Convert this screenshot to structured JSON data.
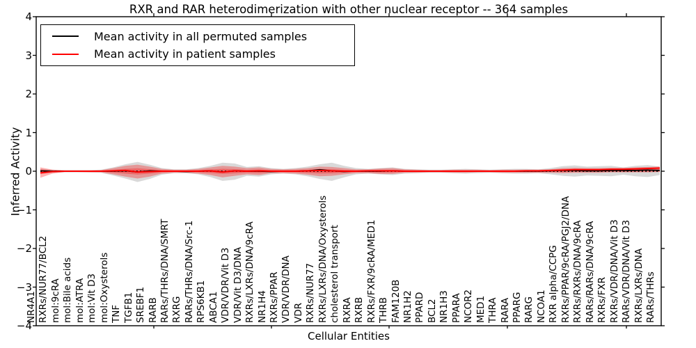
{
  "chart_data": {
    "type": "line",
    "title": "RXR and RAR heterodimerization with other nuclear receptor -- 364 samples",
    "xlabel": "Cellular Entities",
    "ylabel": "Inferred Activity",
    "ylim": [
      -4,
      4
    ],
    "ytick_labels": [
      "4",
      "3",
      "2",
      "1",
      "0",
      "−1",
      "−2",
      "−3",
      "−4"
    ],
    "grid": false,
    "legend_position": "upper left",
    "categories": [
      "NR4A1",
      "RXRs/NUR77/BCL2",
      "mol:9cRA",
      "mol:Bile acids",
      "mol:ATRA",
      "mol:Vit D3",
      "mol:Oxysterols",
      "TNF",
      "TGFB1",
      "SREBF1",
      "RARB",
      "RARs/THRs/DNA/SMRT",
      "RXRG",
      "RARs/THRs/DNA/Src-1",
      "RPS6KB1",
      "ABCA1",
      "VDR/VDR/Vit D3",
      "VDR/Vit D3/DNA",
      "RXRs/LXRs/DNA/9cRA",
      "NR1H4",
      "RXRs/PPAR",
      "VDR/VDR/DNA",
      "VDR",
      "RXRs/NUR77",
      "RXRs/LXRs/DNA/Oxysterols",
      "cholesterol transport",
      "RXRA",
      "RXRB",
      "RXRs/FXR/9cRA/MED1",
      "THRB",
      "FAM120B",
      "NR1H2",
      "PPARD",
      "BCL2",
      "NR1H3",
      "PPARA",
      "NCOR2",
      "MED1",
      "THRA",
      "RARA",
      "PPARG",
      "RARG",
      "NCOA1",
      "RXR alpha/CCPG",
      "RXRs/PPAR/9cRA/PGJ2/DNA",
      "RXRs/RXRs/DNA/9cRA",
      "RARs/RARs/DNA/9cRA",
      "RXRs/FXR",
      "RXRs/VDR/DNA/Vit D3",
      "RARs/VDR/DNA/Vit D3",
      "RXRs/LXRs/DNA",
      "RARs/THRs"
    ],
    "series": [
      {
        "name": "Mean activity in all permuted samples",
        "color": "#000000",
        "style": "solid",
        "values": [
          0.01,
          0,
          0,
          0,
          0,
          0,
          0,
          0.01,
          -0.02,
          0.01,
          0,
          0,
          -0.01,
          0,
          0.01,
          -0.02,
          0.01,
          0,
          0,
          -0.01,
          0,
          0,
          0.01,
          0.04,
          0.01,
          -0.01,
          0,
          0,
          0,
          0.01,
          0,
          0,
          0,
          0,
          0,
          0,
          0,
          0,
          0,
          0,
          0,
          0,
          0.01,
          0.02,
          0.02,
          0.01,
          0.01,
          0.02,
          0.02,
          0.02,
          0.03,
          0.02
        ]
      },
      {
        "name": "Mean activity in patient samples",
        "color": "#ff0000",
        "style": "solid",
        "values": [
          -0.04,
          -0.01,
          0,
          0,
          0,
          0,
          0.01,
          0.02,
          -0.02,
          -0.01,
          0,
          0,
          0,
          0,
          0.01,
          -0.02,
          0.01,
          0,
          0.01,
          0,
          0,
          0,
          0.01,
          0.02,
          0.01,
          0,
          0,
          0.01,
          0.01,
          0.01,
          0,
          0,
          0,
          0,
          0,
          0,
          0,
          0,
          0,
          0,
          0.01,
          0.01,
          0.02,
          0.03,
          0.04,
          0.04,
          0.04,
          0.05,
          0.05,
          0.06,
          0.07,
          0.08
        ]
      }
    ],
    "bands": [
      {
        "name": "permuted samples spread",
        "color": "rgba(0,0,0,0.15)",
        "upper": [
          0.06,
          0.04,
          0.03,
          0.03,
          0.03,
          0.04,
          0.1,
          0.18,
          0.24,
          0.17,
          0.08,
          0.05,
          0.05,
          0.08,
          0.14,
          0.22,
          0.2,
          0.11,
          0.13,
          0.08,
          0.06,
          0.08,
          0.12,
          0.18,
          0.22,
          0.14,
          0.08,
          0.06,
          0.08,
          0.1,
          0.06,
          0.05,
          0.04,
          0.04,
          0.05,
          0.06,
          0.05,
          0.04,
          0.05,
          0.06,
          0.06,
          0.05,
          0.08,
          0.13,
          0.15,
          0.12,
          0.13,
          0.14,
          0.1,
          0.14,
          0.16,
          0.12
        ],
        "lower": [
          -0.06,
          -0.04,
          -0.03,
          -0.03,
          -0.03,
          -0.04,
          -0.11,
          -0.19,
          -0.28,
          -0.2,
          -0.09,
          -0.05,
          -0.05,
          -0.08,
          -0.15,
          -0.25,
          -0.22,
          -0.12,
          -0.14,
          -0.08,
          -0.06,
          -0.08,
          -0.13,
          -0.2,
          -0.25,
          -0.16,
          -0.08,
          -0.06,
          -0.08,
          -0.1,
          -0.06,
          -0.05,
          -0.04,
          -0.04,
          -0.05,
          -0.06,
          -0.05,
          -0.04,
          -0.05,
          -0.06,
          -0.06,
          -0.05,
          -0.08,
          -0.12,
          -0.14,
          -0.11,
          -0.12,
          -0.13,
          -0.09,
          -0.13,
          -0.15,
          -0.1
        ]
      },
      {
        "name": "patient samples spread",
        "color": "rgba(255,0,0,0.30)",
        "upper": [
          0.1,
          0.04,
          0.02,
          0.02,
          0.02,
          0.03,
          0.08,
          0.14,
          0.17,
          0.12,
          0.06,
          0.04,
          0.04,
          0.06,
          0.1,
          0.14,
          0.12,
          0.08,
          0.1,
          0.06,
          0.05,
          0.06,
          0.08,
          0.12,
          0.11,
          0.08,
          0.05,
          0.05,
          0.07,
          0.08,
          0.05,
          0.04,
          0.03,
          0.03,
          0.04,
          0.04,
          0.04,
          0.03,
          0.04,
          0.04,
          0.04,
          0.04,
          0.05,
          0.08,
          0.09,
          0.08,
          0.08,
          0.09,
          0.09,
          0.1,
          0.11,
          0.12
        ],
        "lower": [
          -0.17,
          -0.06,
          -0.02,
          -0.02,
          -0.03,
          -0.03,
          -0.08,
          -0.14,
          -0.19,
          -0.14,
          -0.06,
          -0.04,
          -0.04,
          -0.06,
          -0.1,
          -0.16,
          -0.12,
          -0.08,
          -0.1,
          -0.05,
          -0.05,
          -0.06,
          -0.09,
          -0.13,
          -0.12,
          -0.08,
          -0.05,
          -0.05,
          -0.07,
          -0.07,
          -0.04,
          -0.04,
          -0.03,
          -0.03,
          -0.04,
          -0.04,
          -0.03,
          -0.03,
          -0.04,
          -0.04,
          -0.04,
          -0.04,
          -0.04,
          -0.05,
          -0.04,
          -0.04,
          -0.04,
          -0.03,
          -0.03,
          -0.03,
          -0.03,
          -0.02
        ]
      }
    ],
    "zero_line": {
      "value": 0,
      "style": "dotted",
      "color": "#000000"
    }
  }
}
